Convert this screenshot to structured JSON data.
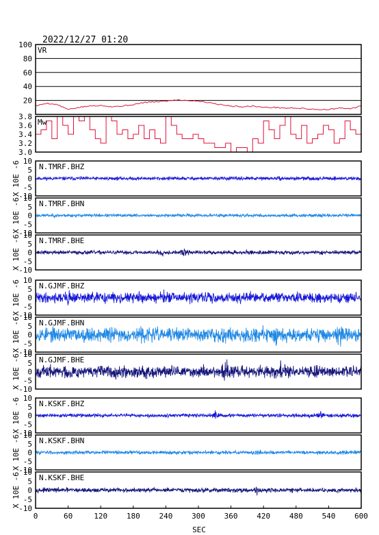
{
  "header": {
    "timestamp": "2022/12/27 01:20"
  },
  "x_axis": {
    "label": "SEC",
    "ticks": [
      "0",
      "60",
      "120",
      "180",
      "240",
      "300",
      "360",
      "420",
      "480",
      "540",
      "600"
    ]
  },
  "colors": {
    "vr_line": "#d81b3c",
    "mw_line": "#e0103a",
    "bhz": "#1818d8",
    "bhn": "#1e88e5",
    "bhe": "#14147a",
    "frame": "#000000",
    "grid": "#000000"
  },
  "chart_data": {
    "type": "line",
    "x_unit": "sec",
    "xlim": [
      0,
      600
    ],
    "panels": [
      {
        "label": "VR",
        "ylim": [
          0,
          100
        ],
        "yticks": [
          "100",
          "80",
          "60",
          "40",
          "20"
        ],
        "grid": true,
        "series_x": [
          0,
          20,
          40,
          60,
          80,
          100,
          120,
          140,
          160,
          180,
          200,
          220,
          240,
          260,
          280,
          300,
          320,
          340,
          360,
          380,
          400,
          420,
          440,
          460,
          480,
          500,
          520,
          540,
          560,
          580,
          600
        ],
        "series_y": [
          12,
          16,
          14,
          7,
          10,
          12,
          13,
          11,
          12,
          14,
          17,
          18,
          19,
          21,
          20,
          19,
          17,
          14,
          12,
          11,
          12,
          10,
          10,
          9,
          9,
          8,
          7,
          7,
          9,
          8,
          12
        ]
      },
      {
        "label": "Mw",
        "ylim": [
          3.0,
          3.8
        ],
        "yticks": [
          "3.8",
          "3.6",
          "3.4",
          "3.2",
          "3.0"
        ],
        "grid": false,
        "series_x": [
          0,
          10,
          20,
          30,
          40,
          50,
          60,
          70,
          80,
          90,
          100,
          110,
          120,
          130,
          140,
          150,
          160,
          170,
          180,
          190,
          200,
          210,
          220,
          230,
          240,
          250,
          260,
          270,
          280,
          290,
          300,
          310,
          320,
          330,
          340,
          350,
          360,
          370,
          380,
          390,
          400,
          410,
          420,
          430,
          440,
          450,
          460,
          470,
          480,
          490,
          500,
          510,
          520,
          530,
          540,
          550,
          560,
          570,
          580,
          590,
          600
        ],
        "series_y": [
          3.4,
          3.5,
          3.7,
          3.3,
          3.8,
          3.6,
          3.4,
          3.8,
          3.7,
          3.8,
          3.5,
          3.3,
          3.2,
          3.8,
          3.7,
          3.4,
          3.5,
          3.3,
          3.4,
          3.6,
          3.3,
          3.5,
          3.3,
          3.2,
          3.8,
          3.6,
          3.4,
          3.3,
          3.3,
          3.4,
          3.3,
          3.2,
          3.2,
          3.1,
          3.1,
          3.2,
          3.0,
          3.1,
          3.1,
          3.0,
          3.3,
          3.2,
          3.7,
          3.5,
          3.3,
          3.6,
          3.8,
          3.4,
          3.3,
          3.6,
          3.2,
          3.3,
          3.4,
          3.6,
          3.5,
          3.2,
          3.3,
          3.7,
          3.5,
          3.4,
          3.7
        ]
      },
      {
        "label": "N.TMRF.BHZ",
        "ylabel": "X 10E -6",
        "ylim": [
          -10,
          10
        ],
        "yticks": [
          "10",
          "5",
          "0",
          "-5",
          "-10"
        ],
        "component": "bhz",
        "seed": 11,
        "amp": 0.9,
        "bursts": []
      },
      {
        "label": "N.TMRF.BHN",
        "ylabel": "X 10E -6",
        "ylim": [
          -10,
          10
        ],
        "yticks": [
          "10",
          "5",
          "0",
          "-5",
          "-10"
        ],
        "component": "bhn",
        "seed": 23,
        "amp": 0.8,
        "bursts": []
      },
      {
        "label": "N.TMRF.BHE",
        "ylabel": "X 10E -6",
        "ylim": [
          -10,
          10
        ],
        "yticks": [
          "10",
          "5",
          "0",
          "-5",
          "-10"
        ],
        "component": "bhe",
        "seed": 37,
        "amp": 1.0,
        "bursts": [
          [
            230,
            1.5
          ],
          [
            275,
            1.6
          ]
        ]
      },
      {
        "label": "N.GJMF.BHZ",
        "ylabel": "X 10E -6",
        "ylim": [
          -10,
          10
        ],
        "yticks": [
          "10",
          "5",
          "0",
          "-5",
          "-10"
        ],
        "component": "bhz",
        "seed": 41,
        "amp": 2.6,
        "bursts": [
          [
            60,
            1.3
          ],
          [
            240,
            1.3
          ]
        ]
      },
      {
        "label": "N.GJMF.BHN",
        "ylabel": "X 10E -6",
        "ylim": [
          -10,
          10
        ],
        "yticks": [
          "10",
          "5",
          "0",
          "-5",
          "-10"
        ],
        "component": "bhn",
        "seed": 53,
        "amp": 3.6,
        "bursts": [
          [
            130,
            1.3
          ],
          [
            440,
            1.3
          ],
          [
            560,
            1.3
          ]
        ]
      },
      {
        "label": "N.GJMF.BHE",
        "ylabel": "X 10E -6",
        "ylim": [
          -10,
          10
        ],
        "yticks": [
          "10",
          "5",
          "0",
          "-5",
          "-10"
        ],
        "component": "bhe",
        "seed": 67,
        "amp": 3.0,
        "bursts": [
          [
            60,
            1.3
          ],
          [
            350,
            1.4
          ],
          [
            450,
            1.4
          ]
        ]
      },
      {
        "label": "N.KSKF.BHZ",
        "ylabel": "X 10E -6",
        "ylim": [
          -10,
          10
        ],
        "yticks": [
          "10",
          "5",
          "0",
          "-5",
          "-10"
        ],
        "component": "bhz",
        "seed": 71,
        "amp": 0.9,
        "bursts": [
          [
            330,
            1.8
          ],
          [
            525,
            1.6
          ]
        ]
      },
      {
        "label": "N.KSKF.BHN",
        "ylabel": "X 10E -6",
        "ylim": [
          -10,
          10
        ],
        "yticks": [
          "10",
          "5",
          "0",
          "-5",
          "-10"
        ],
        "component": "bhn",
        "seed": 83,
        "amp": 0.9,
        "bursts": [
          [
            410,
            1.5
          ]
        ]
      },
      {
        "label": "N.KSKF.BHE",
        "ylabel": "X 10E -6",
        "ylim": [
          -10,
          10
        ],
        "yticks": [
          "10",
          "5",
          "0",
          "-5",
          "-10"
        ],
        "component": "bhe",
        "seed": 97,
        "amp": 1.1,
        "bursts": [
          [
            410,
            1.5
          ]
        ]
      }
    ]
  }
}
